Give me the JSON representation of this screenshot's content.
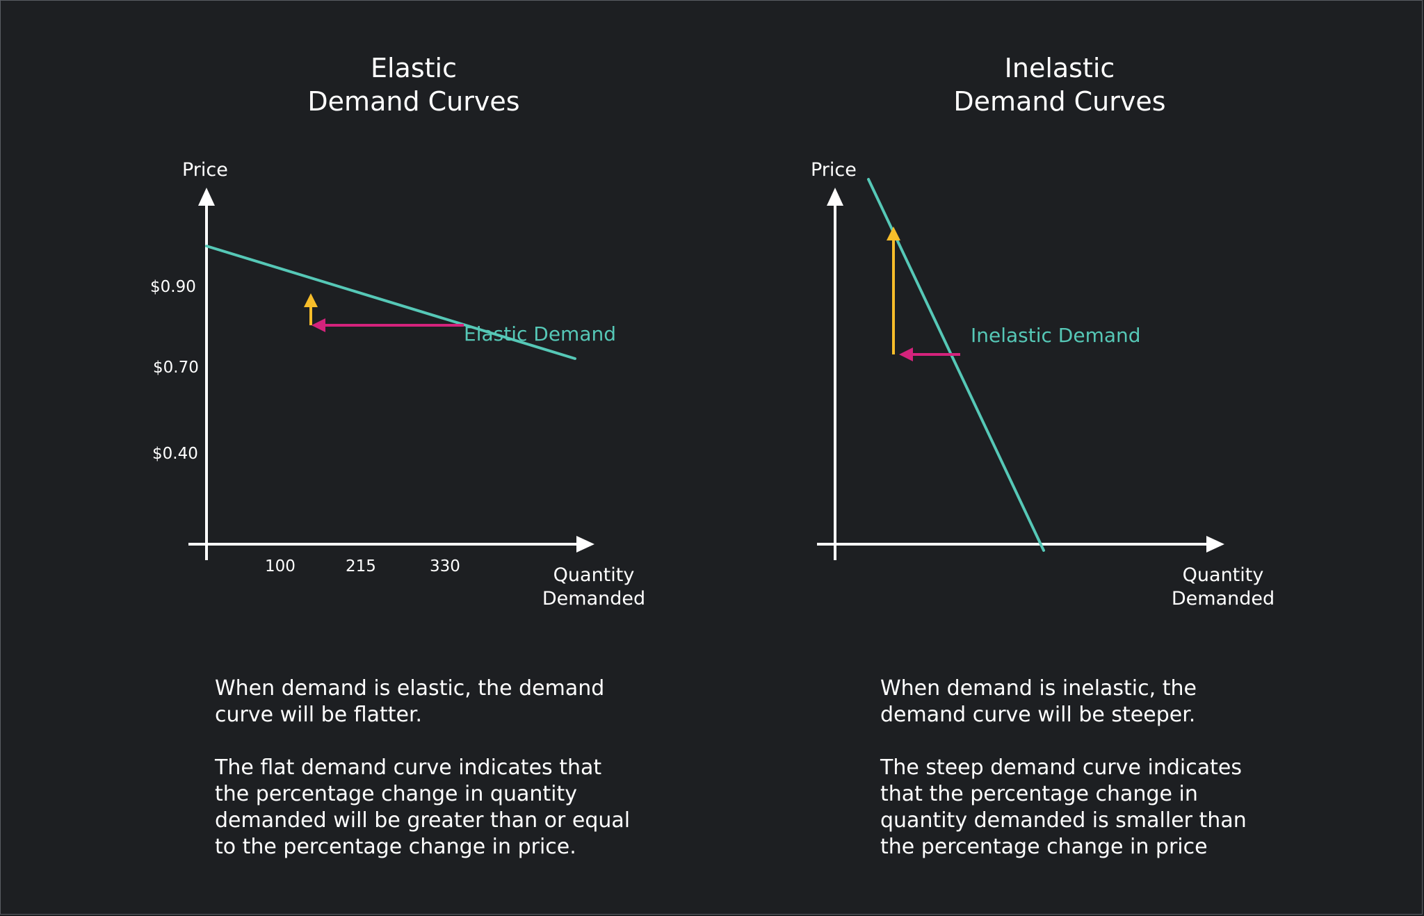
{
  "colors": {
    "background": "#1d1f22",
    "axis": "#ffffff",
    "demand_curve": "#56c8b7",
    "price_change_arrow": "#f7bd2a",
    "quantity_change_arrow": "#d4237c"
  },
  "chart_data": [
    {
      "type": "line",
      "title_line1": "Elastic",
      "title_line2": "Demand Curves",
      "ylabel": "Price",
      "xlabel_line1": "Quantity",
      "xlabel_line2": "Demanded",
      "y_ticks": [
        "$0.90",
        "$0.70",
        "$0.40"
      ],
      "x_ticks": [
        "100",
        "215",
        "330"
      ],
      "series": [
        {
          "name": "Elastic Demand",
          "x": [
            0,
            530
          ],
          "y": [
            0.9,
            0.63
          ]
        }
      ],
      "annotations": {
        "price_arrow": {
          "x": 150,
          "from": 0.71,
          "to": 0.78
        },
        "quantity_arrow": {
          "y": 0.71,
          "from": 370,
          "to": 155
        }
      },
      "caption": [
        "When demand is elastic, the demand\ncurve will be flatter.",
        "The flat demand curve indicates that\nthe percentage change in quantity\ndemanded will be greater than or equal\nto the percentage change in price."
      ]
    },
    {
      "type": "line",
      "title_line1": "Inelastic",
      "title_line2": "Demand Curves",
      "ylabel": "Price",
      "xlabel_line1": "Quantity",
      "xlabel_line2": "Demanded",
      "series": [
        {
          "name": "Inelastic Demand",
          "x": [
            40,
            250
          ],
          "y": [
            1.06,
            0.17
          ]
        }
      ],
      "annotations": {
        "price_arrow": {
          "x": 70,
          "from": 0.64,
          "to": 0.94
        },
        "quantity_arrow": {
          "y": 0.64,
          "from": 150,
          "to": 80
        }
      },
      "caption": [
        "When demand is inelastic, the\ndemand curve will be steeper.",
        "The steep demand curve indicates\nthat the percentage change in\nquantity demanded is smaller than\nthe percentage change in price"
      ]
    }
  ]
}
